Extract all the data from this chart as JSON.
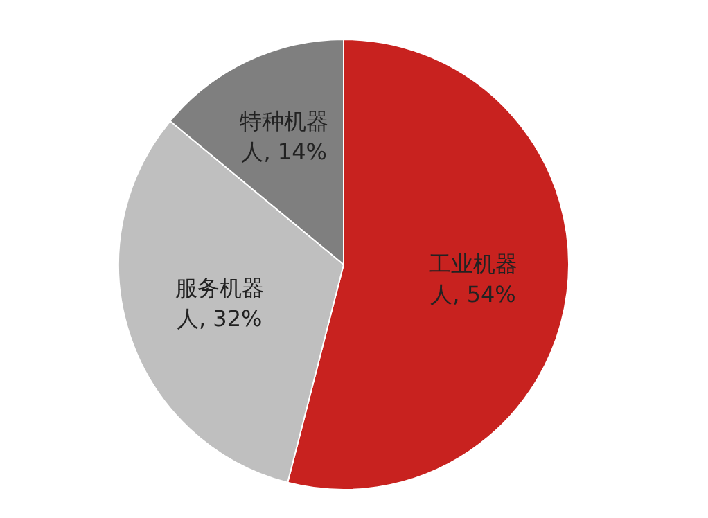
{
  "chart_data": {
    "type": "pie",
    "categories": [
      "工业机器人",
      "服务机器人",
      "特种机器人"
    ],
    "values": [
      54,
      32,
      14
    ],
    "colors": [
      "#c8221f",
      "#bfbfbf",
      "#7f7f7f"
    ],
    "value_labels": [
      "54%",
      "32%",
      "14%"
    ],
    "legend": false
  }
}
